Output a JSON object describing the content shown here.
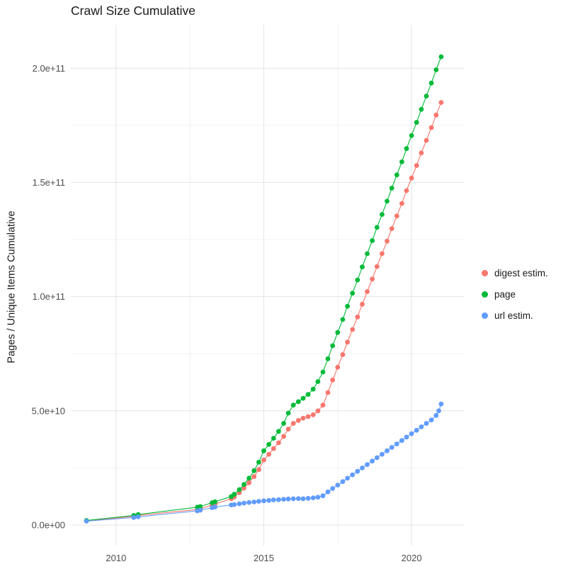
{
  "chart_data": {
    "type": "scatter",
    "title": "Crawl Size Cumulative",
    "xlabel": "",
    "ylabel": "Pages / Unique Items Cumulative",
    "grid": true,
    "legend_position": "right",
    "y_unit": "1e9",
    "x_range": [
      2008.47,
      2021.77
    ],
    "y_range_e9": [
      -9,
      219
    ],
    "x_ticks": [
      {
        "value": 2010,
        "label": "2010"
      },
      {
        "value": 2015,
        "label": "2015"
      },
      {
        "value": 2020,
        "label": "2020"
      }
    ],
    "x_minor_ticks": [
      2012.5,
      2017.5
    ],
    "y_ticks": [
      {
        "value_e9": 0,
        "label": "0.0e+00"
      },
      {
        "value_e9": 50,
        "label": "5.0e+10"
      },
      {
        "value_e9": 100,
        "label": "1.0e+11"
      },
      {
        "value_e9": 150,
        "label": "1.5e+11"
      },
      {
        "value_e9": 200,
        "label": "2.0e+11"
      }
    ],
    "y_minor_ticks_e9": [
      25,
      75,
      125,
      175
    ],
    "series": [
      {
        "name": "digest estim.",
        "color": "#F8766D",
        "points": [
          [
            2009,
            1.8
          ],
          [
            2010.6,
            3.8
          ],
          [
            2010.75,
            4.2
          ],
          [
            2012.75,
            6.8
          ],
          [
            2012.85,
            7.1
          ],
          [
            2013.25,
            8.8
          ],
          [
            2013.35,
            9.2
          ],
          [
            2013.9,
            11.5
          ],
          [
            2014,
            12.3
          ],
          [
            2014.17,
            14.2
          ],
          [
            2014.33,
            16.2
          ],
          [
            2014.5,
            18.5
          ],
          [
            2014.67,
            21.2
          ],
          [
            2014.83,
            24.3
          ],
          [
            2015,
            28.5
          ],
          [
            2015.17,
            31
          ],
          [
            2015.33,
            33.5
          ],
          [
            2015.5,
            36
          ],
          [
            2015.67,
            38.8
          ],
          [
            2015.83,
            42
          ],
          [
            2016,
            44.5
          ],
          [
            2016.17,
            45.8
          ],
          [
            2016.33,
            46.8
          ],
          [
            2016.5,
            47.5
          ],
          [
            2016.67,
            48.3
          ],
          [
            2016.83,
            50
          ],
          [
            2017,
            52.5
          ],
          [
            2017.17,
            58
          ],
          [
            2017.33,
            63.5
          ],
          [
            2017.5,
            69.1
          ],
          [
            2017.67,
            74.6
          ],
          [
            2017.83,
            80.1
          ],
          [
            2018,
            85.6
          ],
          [
            2018.17,
            91.1
          ],
          [
            2018.33,
            96.7
          ],
          [
            2018.5,
            102.2
          ],
          [
            2018.67,
            107.7
          ],
          [
            2018.83,
            113.2
          ],
          [
            2019,
            118.8
          ],
          [
            2019.17,
            124.3
          ],
          [
            2019.33,
            129.8
          ],
          [
            2019.5,
            135.3
          ],
          [
            2019.67,
            140.8
          ],
          [
            2019.83,
            146.4
          ],
          [
            2020,
            151.9
          ],
          [
            2020.17,
            157.4
          ],
          [
            2020.33,
            162.9
          ],
          [
            2020.5,
            168.4
          ],
          [
            2020.67,
            174
          ],
          [
            2020.83,
            179.5
          ],
          [
            2021,
            185
          ]
        ]
      },
      {
        "name": "page",
        "color": "#00BA38",
        "points": [
          [
            2009,
            2
          ],
          [
            2010.6,
            4.2
          ],
          [
            2010.75,
            4.6
          ],
          [
            2012.75,
            7.8
          ],
          [
            2012.85,
            8.1
          ],
          [
            2013.25,
            9.8
          ],
          [
            2013.35,
            10.2
          ],
          [
            2013.9,
            12.5
          ],
          [
            2014,
            13.5
          ],
          [
            2014.17,
            15.5
          ],
          [
            2014.33,
            17.8
          ],
          [
            2014.5,
            20.5
          ],
          [
            2014.67,
            23.8
          ],
          [
            2014.83,
            27.5
          ],
          [
            2015,
            32.5
          ],
          [
            2015.17,
            35.3
          ],
          [
            2015.33,
            38
          ],
          [
            2015.5,
            41
          ],
          [
            2015.67,
            44.5
          ],
          [
            2015.83,
            49
          ],
          [
            2016,
            52.5
          ],
          [
            2016.17,
            54
          ],
          [
            2016.33,
            55.5
          ],
          [
            2016.5,
            57.2
          ],
          [
            2016.67,
            59.5
          ],
          [
            2016.83,
            62.8
          ],
          [
            2017,
            67
          ],
          [
            2017.17,
            72.8
          ],
          [
            2017.33,
            78.5
          ],
          [
            2017.5,
            84.3
          ],
          [
            2017.67,
            90
          ],
          [
            2017.83,
            95.8
          ],
          [
            2018,
            101.5
          ],
          [
            2018.17,
            107.3
          ],
          [
            2018.33,
            113
          ],
          [
            2018.5,
            118.8
          ],
          [
            2018.67,
            124.5
          ],
          [
            2018.83,
            130.3
          ],
          [
            2019,
            136
          ],
          [
            2019.17,
            141.8
          ],
          [
            2019.33,
            147.5
          ],
          [
            2019.5,
            153.3
          ],
          [
            2019.67,
            159
          ],
          [
            2019.83,
            164.8
          ],
          [
            2020,
            170.5
          ],
          [
            2020.17,
            176.3
          ],
          [
            2020.33,
            182
          ],
          [
            2020.5,
            187.8
          ],
          [
            2020.67,
            193.5
          ],
          [
            2020.83,
            199.3
          ],
          [
            2021,
            205
          ]
        ]
      },
      {
        "name": "url estim.",
        "color": "#619CFF",
        "points": [
          [
            2009,
            1.7
          ],
          [
            2010.6,
            3.3
          ],
          [
            2010.75,
            3.6
          ],
          [
            2012.75,
            6.2
          ],
          [
            2012.85,
            6.5
          ],
          [
            2013.25,
            7.6
          ],
          [
            2013.35,
            7.9
          ],
          [
            2013.9,
            8.8
          ],
          [
            2014,
            9
          ],
          [
            2014.17,
            9.3
          ],
          [
            2014.33,
            9.6
          ],
          [
            2014.5,
            9.9
          ],
          [
            2014.67,
            10.1
          ],
          [
            2014.83,
            10.4
          ],
          [
            2015,
            10.6
          ],
          [
            2015.17,
            10.8
          ],
          [
            2015.33,
            11
          ],
          [
            2015.5,
            11.1
          ],
          [
            2015.67,
            11.3
          ],
          [
            2015.83,
            11.4
          ],
          [
            2016,
            11.5
          ],
          [
            2016.17,
            11.6
          ],
          [
            2016.33,
            11.5
          ],
          [
            2016.5,
            11.7
          ],
          [
            2016.67,
            11.9
          ],
          [
            2016.83,
            12.2
          ],
          [
            2017,
            12.8
          ],
          [
            2017.17,
            14.5
          ],
          [
            2017.33,
            16
          ],
          [
            2017.5,
            17.5
          ],
          [
            2017.67,
            19
          ],
          [
            2017.83,
            20.5
          ],
          [
            2018,
            22
          ],
          [
            2018.17,
            23.5
          ],
          [
            2018.33,
            25
          ],
          [
            2018.5,
            26.5
          ],
          [
            2018.67,
            28
          ],
          [
            2018.83,
            29.5
          ],
          [
            2019,
            31
          ],
          [
            2019.17,
            32.5
          ],
          [
            2019.33,
            34
          ],
          [
            2019.5,
            35.5
          ],
          [
            2019.67,
            37
          ],
          [
            2019.83,
            38.5
          ],
          [
            2020,
            40
          ],
          [
            2020.17,
            41.5
          ],
          [
            2020.33,
            43
          ],
          [
            2020.5,
            44.5
          ],
          [
            2020.67,
            46
          ],
          [
            2020.83,
            48
          ],
          [
            2020.92,
            50
          ],
          [
            2021,
            53
          ]
        ]
      }
    ],
    "style": {
      "grid_major_color": "#e4e4e4",
      "grid_minor_color": "#f1f1f1",
      "tick_label_color": "#4d4d4d",
      "point_radius": 3.4
    }
  }
}
